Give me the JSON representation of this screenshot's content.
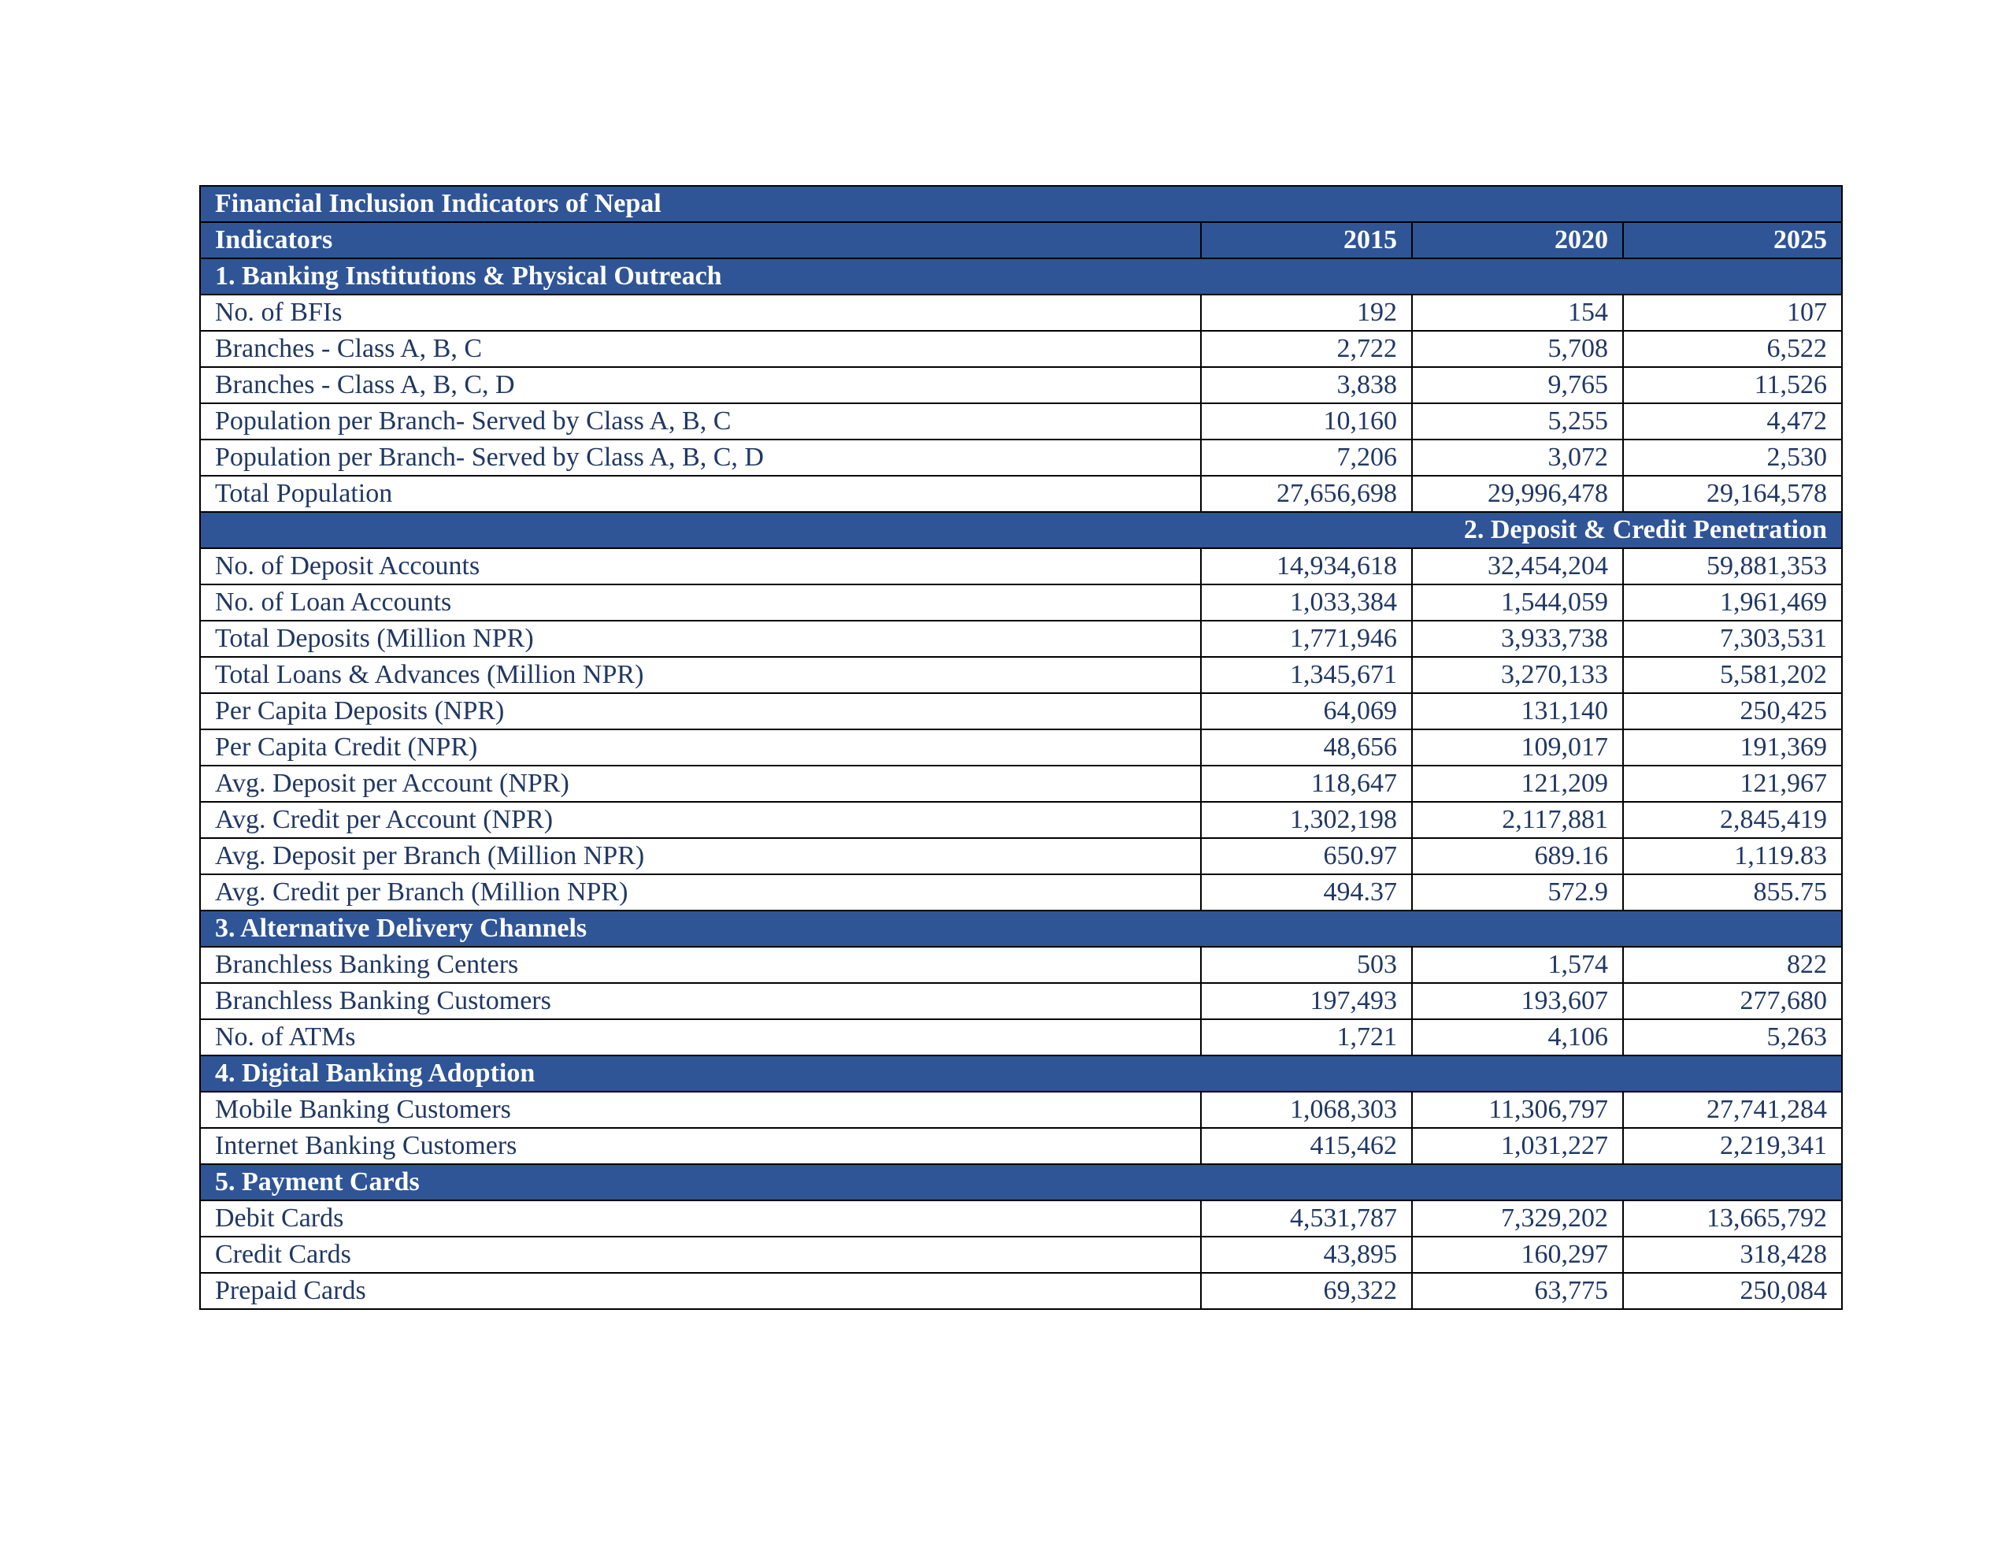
{
  "table": {
    "title": "Financial Inclusion Indicators of Nepal",
    "header": {
      "indicators_label": "Indicators",
      "years": [
        "2015",
        "2020",
        "2025"
      ]
    },
    "sections": [
      {
        "title": "1. Banking Institutions & Physical Outreach",
        "align": "left",
        "rows": [
          {
            "label": "No. of BFIs",
            "values": [
              "192",
              "154",
              "107"
            ]
          },
          {
            "label": "Branches - Class A, B, C",
            "values": [
              "2,722",
              "5,708",
              "6,522"
            ]
          },
          {
            "label": "Branches - Class A, B, C, D",
            "values": [
              "3,838",
              "9,765",
              "11,526"
            ]
          },
          {
            "label": "Population per Branch- Served by Class A, B, C",
            "values": [
              "10,160",
              "5,255",
              "4,472"
            ]
          },
          {
            "label": "Population per Branch- Served by Class A, B, C, D",
            "values": [
              "7,206",
              "3,072",
              "2,530"
            ]
          },
          {
            "label": "Total Population",
            "values": [
              "27,656,698",
              "29,996,478",
              "29,164,578"
            ]
          }
        ]
      },
      {
        "title": "2. Deposit & Credit Penetration",
        "align": "right",
        "rows": [
          {
            "label": "No. of Deposit Accounts",
            "values": [
              "14,934,618",
              "32,454,204",
              "59,881,353"
            ]
          },
          {
            "label": "No. of Loan Accounts",
            "values": [
              "1,033,384",
              "1,544,059",
              "1,961,469"
            ]
          },
          {
            "label": "Total Deposits (Million NPR)",
            "values": [
              "1,771,946",
              "3,933,738",
              "7,303,531"
            ]
          },
          {
            "label": "Total Loans & Advances (Million NPR)",
            "values": [
              "1,345,671",
              "3,270,133",
              "5,581,202"
            ]
          },
          {
            "label": "Per Capita Deposits (NPR)",
            "values": [
              "64,069",
              "131,140",
              "250,425"
            ]
          },
          {
            "label": "Per Capita Credit (NPR)",
            "values": [
              "48,656",
              "109,017",
              "191,369"
            ]
          },
          {
            "label": "Avg. Deposit per Account (NPR)",
            "values": [
              "118,647",
              "121,209",
              "121,967"
            ]
          },
          {
            "label": "Avg. Credit per Account (NPR)",
            "values": [
              "1,302,198",
              "2,117,881",
              "2,845,419"
            ]
          },
          {
            "label": "Avg. Deposit per Branch (Million NPR)",
            "values": [
              "650.97",
              "689.16",
              "1,119.83"
            ]
          },
          {
            "label": "Avg. Credit per Branch (Million NPR)",
            "values": [
              "494.37",
              "572.9",
              "855.75"
            ]
          }
        ]
      },
      {
        "title": "3. Alternative Delivery Channels",
        "align": "left",
        "rows": [
          {
            "label": "Branchless Banking Centers",
            "values": [
              "503",
              "1,574",
              "822"
            ]
          },
          {
            "label": "Branchless Banking Customers",
            "values": [
              "197,493",
              "193,607",
              "277,680"
            ]
          },
          {
            "label": "No. of ATMs",
            "values": [
              "1,721",
              "4,106",
              "5,263"
            ]
          }
        ]
      },
      {
        "title": "4. Digital Banking Adoption",
        "align": "left",
        "rows": [
          {
            "label": "Mobile Banking Customers",
            "values": [
              "1,068,303",
              "11,306,797",
              "27,741,284"
            ]
          },
          {
            "label": "Internet Banking Customers",
            "values": [
              "415,462",
              "1,031,227",
              "2,219,341"
            ]
          }
        ]
      },
      {
        "title": "5. Payment Cards",
        "align": "left",
        "rows": [
          {
            "label": "Debit Cards",
            "values": [
              "4,531,787",
              "7,329,202",
              "13,665,792"
            ]
          },
          {
            "label": "Credit Cards",
            "values": [
              "43,895",
              "160,297",
              "318,428"
            ]
          },
          {
            "label": "Prepaid Cards",
            "values": [
              "69,322",
              "63,775",
              "250,084"
            ]
          }
        ]
      }
    ]
  }
}
